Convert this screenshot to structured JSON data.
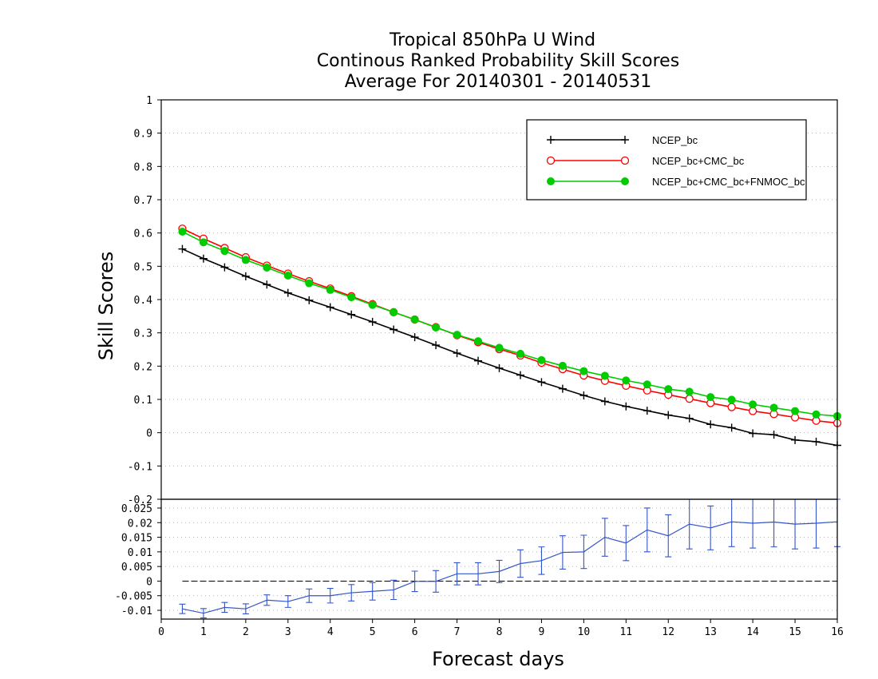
{
  "title_lines": [
    "Tropical 850hPa U Wind",
    "Continous Ranked Probability Skill Scores",
    "Average For 20140301 - 20140531"
  ],
  "chart_data": [
    {
      "type": "line",
      "xlabel": "Forecast days",
      "ylabel": "Skill Scores",
      "xlim": [
        0,
        16
      ],
      "ylim": [
        -0.2,
        1
      ],
      "x_ticks": [
        0,
        1,
        2,
        3,
        4,
        5,
        6,
        7,
        8,
        9,
        10,
        11,
        12,
        13,
        14,
        15,
        16
      ],
      "y_ticks": [
        -0.2,
        -0.1,
        0,
        0.1,
        0.2,
        0.3,
        0.4,
        0.5,
        0.6,
        0.7,
        0.8,
        0.9,
        1
      ],
      "y_tick_labels": [
        "-0.2",
        "-0.1",
        "0",
        "0.1",
        "0.2",
        "0.3",
        "0.4",
        "0.5",
        "0.6",
        "0.7",
        "0.8",
        "0.9",
        "1"
      ],
      "grid": "horizontal-dotted",
      "legend_position": "top-right",
      "x": [
        0.5,
        1,
        1.5,
        2,
        2.5,
        3,
        3.5,
        4,
        4.5,
        5,
        5.5,
        6,
        6.5,
        7,
        7.5,
        8,
        8.5,
        9,
        9.5,
        10,
        10.5,
        11,
        11.5,
        12,
        12.5,
        13,
        13.5,
        14,
        14.5,
        15,
        15.5,
        16
      ],
      "series": [
        {
          "name": "NCEP_bc",
          "color": "#000000",
          "marker": "plus",
          "values": [
            0.552,
            0.523,
            0.497,
            0.47,
            0.445,
            0.42,
            0.398,
            0.377,
            0.355,
            0.333,
            0.31,
            0.287,
            0.263,
            0.239,
            0.216,
            0.194,
            0.173,
            0.152,
            0.132,
            0.112,
            0.094,
            0.079,
            0.066,
            0.053,
            0.043,
            0.025,
            0.015,
            -0.002,
            -0.006,
            -0.022,
            -0.027,
            -0.038
          ]
        },
        {
          "name": "NCEP_bc+CMC_bc",
          "color": "#ff0000",
          "marker": "open-circle",
          "values": [
            0.613,
            0.583,
            0.555,
            0.527,
            0.502,
            0.478,
            0.455,
            0.433,
            0.41,
            0.386,
            0.362,
            0.34,
            0.317,
            0.293,
            0.272,
            0.251,
            0.232,
            0.21,
            0.191,
            0.172,
            0.156,
            0.141,
            0.127,
            0.114,
            0.102,
            0.089,
            0.077,
            0.065,
            0.056,
            0.046,
            0.036,
            0.029
          ]
        },
        {
          "name": "NCEP_bc+CMC_bc+FNMOC_bc",
          "color": "#00cc00",
          "marker": "filled-circle",
          "values": [
            0.604,
            0.572,
            0.546,
            0.519,
            0.496,
            0.472,
            0.449,
            0.429,
            0.407,
            0.384,
            0.362,
            0.34,
            0.316,
            0.294,
            0.275,
            0.255,
            0.237,
            0.218,
            0.201,
            0.185,
            0.171,
            0.157,
            0.145,
            0.131,
            0.123,
            0.107,
            0.099,
            0.085,
            0.075,
            0.065,
            0.055,
            0.05
          ]
        }
      ]
    },
    {
      "type": "line",
      "xlim": [
        0,
        16
      ],
      "ylim": [
        -0.013,
        0.028
      ],
      "y_ticks": [
        -0.01,
        -0.005,
        0,
        0.005,
        0.01,
        0.015,
        0.02,
        0.025
      ],
      "y_tick_labels": [
        "-0.01",
        "-0.005",
        "0",
        "0.005",
        "0.01",
        "0.015",
        "0.02",
        "0.025"
      ],
      "grid": "horizontal-dotted",
      "zero_line": "dashed",
      "x": [
        0.5,
        1,
        1.5,
        2,
        2.5,
        3,
        3.5,
        4,
        4.5,
        5,
        5.5,
        6,
        6.5,
        7,
        7.5,
        8,
        8.5,
        9,
        9.5,
        10,
        10.5,
        11,
        11.5,
        12,
        12.5,
        13,
        13.5,
        14,
        14.5,
        15,
        15.5,
        16
      ],
      "series": [
        {
          "color": "#3355cc",
          "values": [
            -0.0095,
            -0.011,
            -0.009,
            -0.0095,
            -0.0065,
            -0.007,
            -0.005,
            -0.005,
            -0.004,
            -0.0035,
            -0.003,
            -0.0001,
            -0.0001,
            0.0025,
            0.0025,
            0.0033,
            0.006,
            0.007,
            0.0098,
            0.01,
            0.015,
            0.013,
            0.0175,
            0.0155,
            0.0195,
            0.0182,
            0.0203,
            0.0198,
            0.0202,
            0.0195,
            0.0198,
            0.0203
          ],
          "error": [
            0.0016,
            0.0016,
            0.0017,
            0.0017,
            0.0018,
            0.002,
            0.0023,
            0.0025,
            0.0028,
            0.003,
            0.0033,
            0.0035,
            0.0037,
            0.0038,
            0.0038,
            0.0038,
            0.0047,
            0.0047,
            0.0057,
            0.0057,
            0.0065,
            0.006,
            0.0075,
            0.0072,
            0.0085,
            0.0075,
            0.0085,
            0.0085,
            0.0085,
            0.0085,
            0.0085,
            0.0085
          ]
        }
      ]
    }
  ]
}
